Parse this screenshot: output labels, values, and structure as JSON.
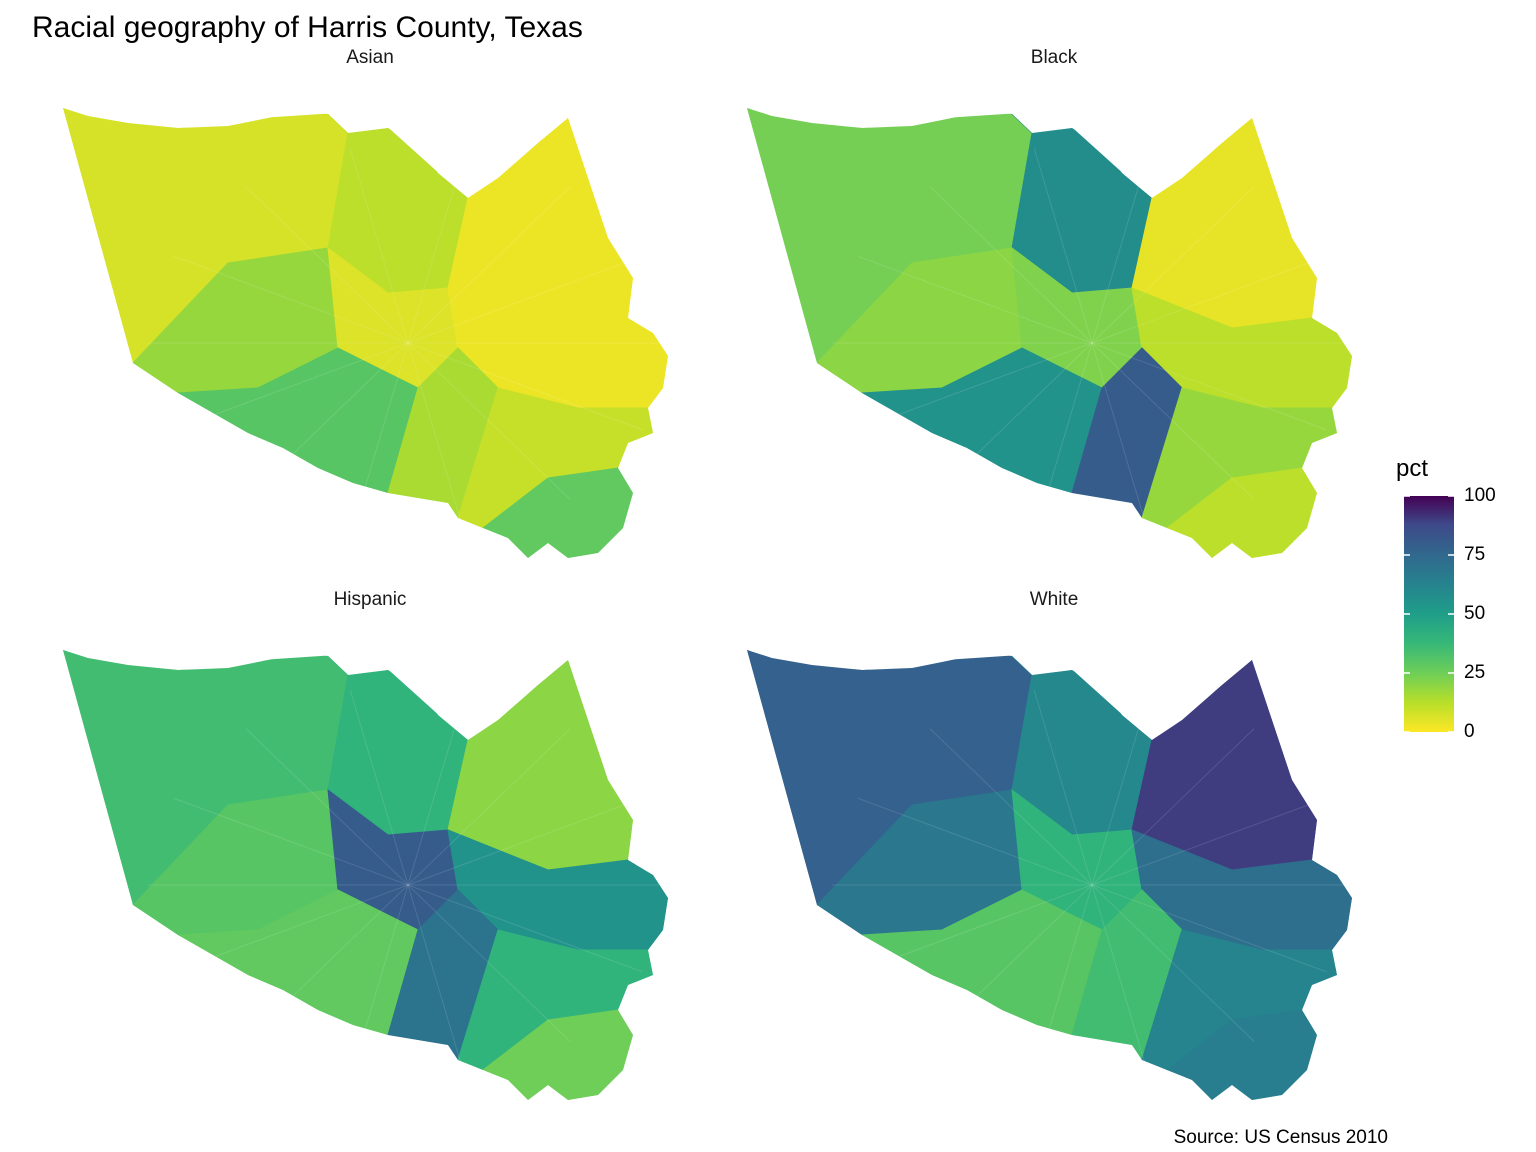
{
  "title": "Racial geography of Harris County, Texas",
  "caption": "Source: US Census 2010",
  "legend": {
    "title": "pct",
    "ticks": [
      "100",
      "75",
      "50",
      "25",
      "0"
    ],
    "tick_values": [
      100,
      75,
      50,
      25,
      0
    ],
    "colors": [
      "#440154",
      "#31688e",
      "#35b779",
      "#fde725"
    ]
  },
  "facets": [
    {
      "label": "Asian",
      "pct_by_zone": {
        "center": 6,
        "west": 18,
        "southwest": 30,
        "north": 12,
        "northwest": 7,
        "northeast": 3,
        "east": 3,
        "southeast": 10,
        "south": 15,
        "clearlake": 28
      }
    },
    {
      "label": "Black",
      "pct_by_zone": {
        "center": 22,
        "west": 20,
        "southwest": 55,
        "north": 58,
        "northwest": 24,
        "northeast": 4,
        "east": 12,
        "southeast": 18,
        "south": 80,
        "clearlake": 12
      }
    },
    {
      "label": "Hispanic",
      "pct_by_zone": {
        "center": 80,
        "west": 30,
        "southwest": 28,
        "north": 40,
        "northwest": 35,
        "northeast": 20,
        "east": 55,
        "southeast": 40,
        "south": 70,
        "clearlake": 25
      }
    },
    {
      "label": "White",
      "pct_by_zone": {
        "center": 40,
        "west": 68,
        "southwest": 30,
        "north": 60,
        "northwest": 78,
        "northeast": 90,
        "east": 72,
        "southeast": 62,
        "south": 35,
        "clearlake": 65
      }
    }
  ]
}
